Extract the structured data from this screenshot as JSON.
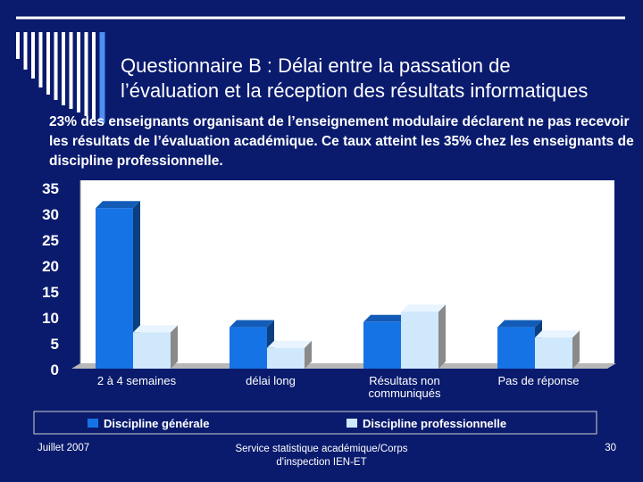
{
  "slide": {
    "title_line1": "Questionnaire B :  Délai entre la passation de",
    "title_line2": "l’évaluation et la réception des résultats informatiques",
    "subtitle": "23% des enseignants organisant de l’enseignement modulaire déclarent ne pas recevoir les résultats de l’évaluation académique. Ce taux atteint les 35% chez les enseignants de discipline professionnelle."
  },
  "footer": {
    "date": "Juillet 2007",
    "source": "Service statistique académique/Corps d'inspection IEN-ET",
    "page": "30"
  },
  "colors": {
    "background": "#0a1b6e",
    "series1": "#1673e6",
    "series2": "#cfe8fb",
    "plot_wall": "#ffffff",
    "floor": "#b8b8b8"
  },
  "chart_data": {
    "type": "bar",
    "categories": [
      [
        "2 à 4 semaines"
      ],
      [
        "délai long"
      ],
      [
        "Résultats non",
        "communiqués"
      ],
      [
        "Pas de réponse"
      ]
    ],
    "series": [
      {
        "name": "Discipline générale",
        "values": [
          31,
          8,
          9,
          8
        ]
      },
      {
        "name": "Discipline professionnelle",
        "values": [
          7,
          4,
          11,
          6
        ]
      }
    ],
    "ylim": [
      0,
      35
    ],
    "yticks": [
      0,
      5,
      10,
      15,
      20,
      25,
      30,
      35
    ],
    "legend_position": "bottom",
    "grid": false,
    "three_d": true
  }
}
